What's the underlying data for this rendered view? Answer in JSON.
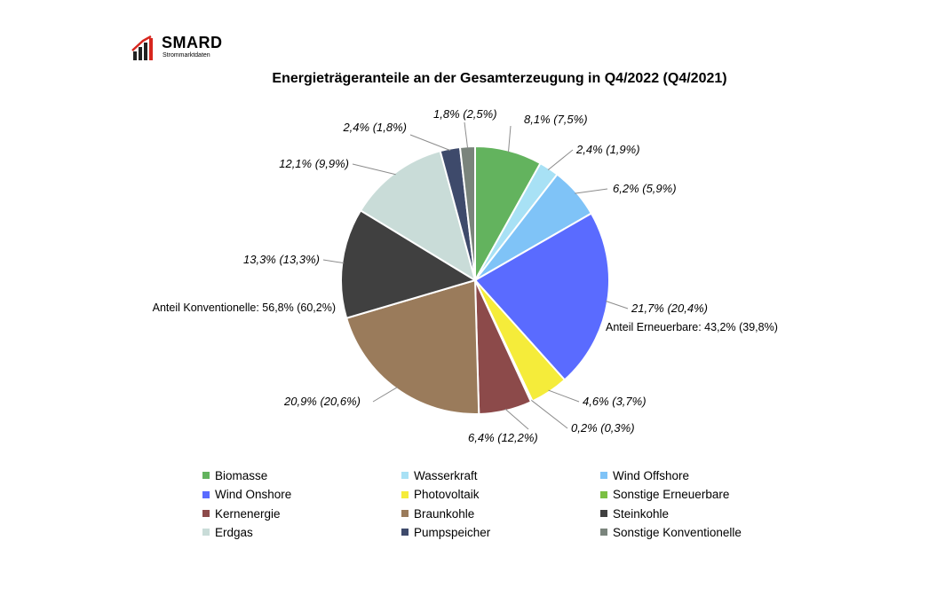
{
  "logo": {
    "brand": "SMARD",
    "subtitle": "Strommarktdaten"
  },
  "chart_data": {
    "type": "pie",
    "title": "Energieträgeranteile an der Gesamterzeugung in Q4/2022 (Q4/2021)",
    "slices": [
      {
        "name": "Biomasse",
        "value": 8.1,
        "previous": 7.5,
        "label": "8,1% (7,5%)",
        "color": "#63b35e"
      },
      {
        "name": "Wasserkraft",
        "value": 2.4,
        "previous": 1.9,
        "label": "2,4% (1,9%)",
        "color": "#a8e1f5"
      },
      {
        "name": "Wind Offshore",
        "value": 6.2,
        "previous": 5.9,
        "label": "6,2% (5,9%)",
        "color": "#7fc3f7"
      },
      {
        "name": "Wind Onshore",
        "value": 21.7,
        "previous": 20.4,
        "label": "21,7% (20,4%)",
        "color": "#5a6bff"
      },
      {
        "name": "Photovoltaik",
        "value": 4.6,
        "previous": 3.7,
        "label": "4,6% (3,7%)",
        "color": "#f5ec3a"
      },
      {
        "name": "Sonstige Erneuerbare",
        "value": 0.2,
        "previous": 0.3,
        "label": "0,2% (0,3%)",
        "color": "#7bc043"
      },
      {
        "name": "Kernenergie",
        "value": 6.4,
        "previous": 12.2,
        "label": "6,4% (12,2%)",
        "color": "#8c4a4a"
      },
      {
        "name": "Braunkohle",
        "value": 20.9,
        "previous": 20.6,
        "label": "20,9% (20,6%)",
        "color": "#9a7b5b"
      },
      {
        "name": "Steinkohle",
        "value": 13.3,
        "previous": 13.3,
        "label": "13,3% (13,3%)",
        "color": "#404040"
      },
      {
        "name": "Erdgas",
        "value": 12.1,
        "previous": 9.9,
        "label": "12,1% (9,9%)",
        "color": "#c9dcd8"
      },
      {
        "name": "Pumpspeicher",
        "value": 2.4,
        "previous": 1.8,
        "label": "2,4% (1,8%)",
        "color": "#3e4a6b"
      },
      {
        "name": "Sonstige Konventionelle",
        "value": 1.8,
        "previous": 2.5,
        "label": "1,8% (2,5%)",
        "color": "#7a847c"
      }
    ],
    "group_labels": {
      "renewables": "Anteil Erneuerbare: 43,2% (39,8%)",
      "conventional": "Anteil Konventionelle: 56,8% (60,2%)"
    },
    "legend_position": "bottom"
  }
}
